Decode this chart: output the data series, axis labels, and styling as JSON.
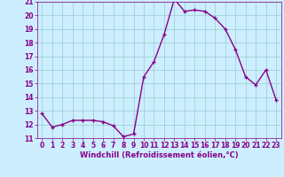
{
  "x": [
    0,
    1,
    2,
    3,
    4,
    5,
    6,
    7,
    8,
    9,
    10,
    11,
    12,
    13,
    14,
    15,
    16,
    17,
    18,
    19,
    20,
    21,
    22,
    23
  ],
  "y": [
    12.8,
    11.8,
    12.0,
    12.3,
    12.3,
    12.3,
    12.2,
    11.9,
    11.1,
    11.3,
    15.5,
    16.6,
    18.6,
    21.2,
    20.3,
    20.4,
    20.3,
    19.8,
    19.0,
    17.5,
    15.5,
    14.9,
    16.0,
    13.8
  ],
  "line_color": "#880088",
  "marker": "+",
  "marker_size": 3.5,
  "marker_lw": 1.0,
  "bg_color": "#cceeff",
  "grid_color": "#99cccc",
  "xlabel": "Windchill (Refroidissement éolien,°C)",
  "xlabel_color": "#880088",
  "tick_color": "#880088",
  "spine_color": "#880088",
  "ylim": [
    11,
    21
  ],
  "xlim": [
    -0.5,
    23.5
  ],
  "yticks": [
    11,
    12,
    13,
    14,
    15,
    16,
    17,
    18,
    19,
    20,
    21
  ],
  "xticks": [
    0,
    1,
    2,
    3,
    4,
    5,
    6,
    7,
    8,
    9,
    10,
    11,
    12,
    13,
    14,
    15,
    16,
    17,
    18,
    19,
    20,
    21,
    22,
    23
  ],
  "linewidth": 1.0,
  "tick_fontsize": 5.5,
  "label_fontsize": 6.0
}
